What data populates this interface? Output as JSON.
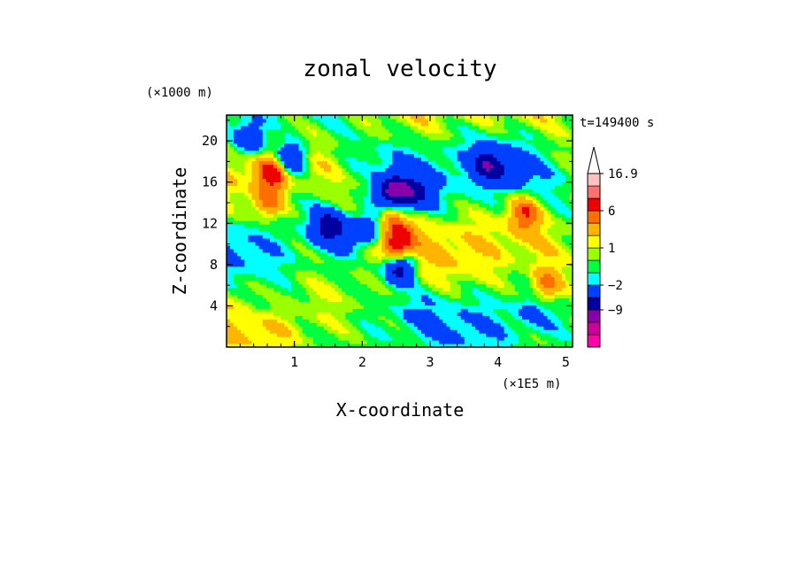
{
  "chart_data": {
    "type": "heatmap",
    "title": "zonal velocity",
    "xlabel": "X-coordinate",
    "ylabel": "Z-coordinate",
    "x_unit": "(×1E5 m)",
    "y_unit": "(×1000 m)",
    "time_label": "t=149400 s",
    "xlim": [
      0,
      5.1
    ],
    "ylim": [
      0,
      22.5
    ],
    "x_ticks": [
      "1",
      "2",
      "3",
      "4",
      "5"
    ],
    "y_ticks": [
      "4",
      "8",
      "12",
      "16",
      "20"
    ],
    "colorbar": {
      "labels": [
        "16.9",
        "6",
        "1",
        "-2",
        "-9"
      ],
      "level_values": [
        -16,
        -12,
        -9,
        -6,
        -2,
        -1,
        0,
        1,
        2,
        4,
        6,
        9,
        12,
        16.9
      ],
      "colors": [
        "#ff00aa",
        "#cc0099",
        "#8800aa",
        "#0000a0",
        "#0040ff",
        "#00ffff",
        "#00ff40",
        "#9aff00",
        "#ffff00",
        "#ffb400",
        "#ff6e00",
        "#ee0000",
        "#ff7070",
        "#ffc0c0"
      ],
      "extend_top": true
    },
    "notes_features": [
      {
        "x": 0.35,
        "z": 20.2,
        "u": -6
      },
      {
        "x": 0.7,
        "z": 17.0,
        "u": 8
      },
      {
        "x": 0.85,
        "z": 18.0,
        "u": -5
      },
      {
        "x": 1.0,
        "z": 18.6,
        "u": -4
      },
      {
        "x": 1.5,
        "z": 11.8,
        "u": -7
      },
      {
        "x": 1.8,
        "z": 11.0,
        "u": -4
      },
      {
        "x": 2.1,
        "z": 11.5,
        "u": -4
      },
      {
        "x": 2.4,
        "z": 15.5,
        "u": -6
      },
      {
        "x": 2.6,
        "z": 15.0,
        "u": -6
      },
      {
        "x": 2.85,
        "z": 15.0,
        "u": -4
      },
      {
        "x": 2.5,
        "z": 10.5,
        "u": 10
      },
      {
        "x": 2.55,
        "z": 8.0,
        "u": -7
      },
      {
        "x": 3.85,
        "z": 17.8,
        "u": -7
      },
      {
        "x": 4.2,
        "z": 17.0,
        "u": -4
      },
      {
        "x": 4.4,
        "z": 13.0,
        "u": 5
      },
      {
        "x": 0.6,
        "z": 14.0,
        "u": 4
      },
      {
        "x": 4.7,
        "z": 6.0,
        "u": 5
      },
      {
        "x": 4.5,
        "z": 3.5,
        "u": -1.5
      },
      {
        "x": 0.5,
        "z": 4.0,
        "u": -1.5
      }
    ]
  }
}
